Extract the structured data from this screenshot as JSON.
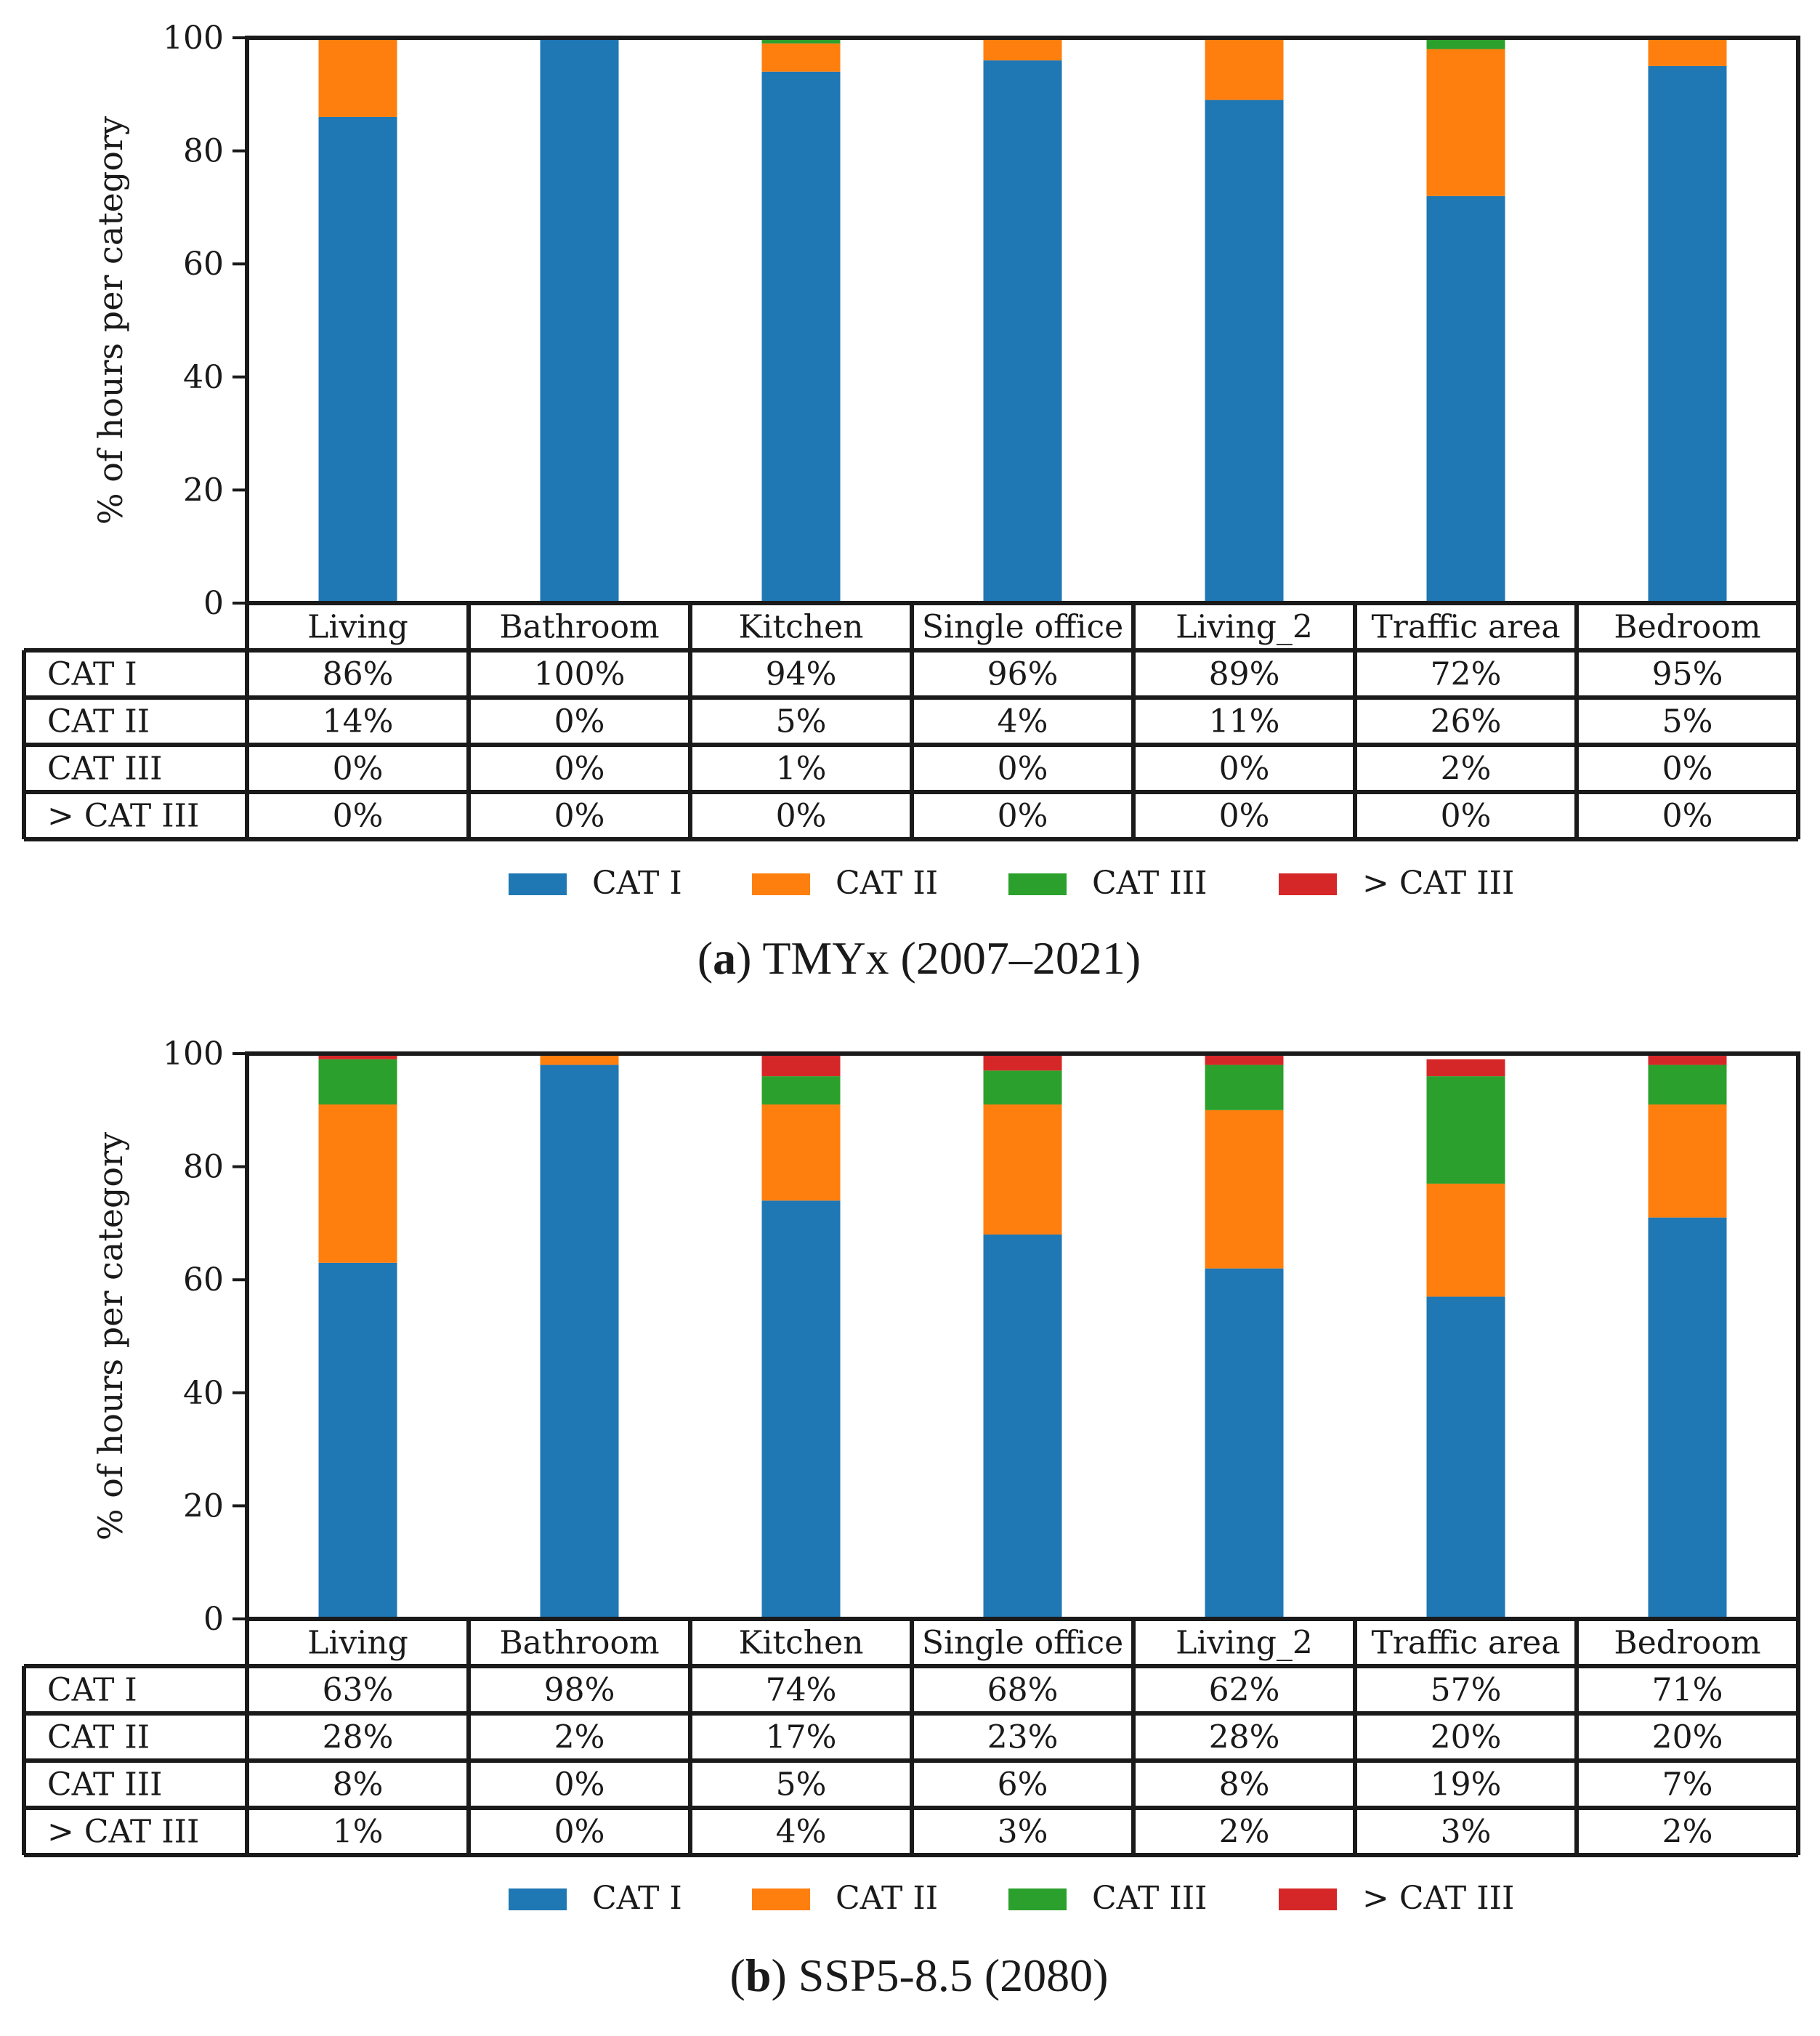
{
  "colors": {
    "cat1": "#1f77b4",
    "cat2": "#ff7f0e",
    "cat3": "#2ca02c",
    "cat4": "#d62728"
  },
  "legend": [
    "CAT I",
    "CAT II",
    "CAT III",
    "> CAT III"
  ],
  "chart_data": [
    {
      "type": "bar",
      "stacked": true,
      "caption_label": "a",
      "caption_text": "TMYx (2007–2021)",
      "ylabel": "% of hours per category",
      "ylim": [
        0,
        100
      ],
      "yticks": [
        "0",
        "20",
        "40",
        "60",
        "80",
        "100"
      ],
      "categories": [
        "Living",
        "Bathroom",
        "Kitchen",
        "Single office",
        "Living_2",
        "Traffic area",
        "Bedroom"
      ],
      "series": [
        {
          "name": "CAT I",
          "values": [
            86,
            100,
            94,
            96,
            89,
            72,
            95
          ],
          "labels": [
            "86%",
            "100%",
            "94%",
            "96%",
            "89%",
            "72%",
            "95%"
          ]
        },
        {
          "name": "CAT II",
          "values": [
            14,
            0,
            5,
            4,
            11,
            26,
            5
          ],
          "labels": [
            "14%",
            "0%",
            "5%",
            "4%",
            "11%",
            "26%",
            "5%"
          ]
        },
        {
          "name": "CAT III",
          "values": [
            0,
            0,
            1,
            0,
            0,
            2,
            0
          ],
          "labels": [
            "0%",
            "0%",
            "1%",
            "0%",
            "0%",
            "2%",
            "0%"
          ]
        },
        {
          "name": "> CAT III",
          "values": [
            0,
            0,
            0,
            0,
            0,
            0,
            0
          ],
          "labels": [
            "0%",
            "0%",
            "0%",
            "0%",
            "0%",
            "0%",
            "0%"
          ]
        }
      ]
    },
    {
      "type": "bar",
      "stacked": true,
      "caption_label": "b",
      "caption_text": "SSP5-8.5 (2080)",
      "ylabel": "% of hours per category",
      "ylim": [
        0,
        100
      ],
      "yticks": [
        "0",
        "20",
        "40",
        "60",
        "80",
        "100"
      ],
      "categories": [
        "Living",
        "Bathroom",
        "Kitchen",
        "Single office",
        "Living_2",
        "Traffic area",
        "Bedroom"
      ],
      "series": [
        {
          "name": "CAT I",
          "values": [
            63,
            98,
            74,
            68,
            62,
            57,
            71
          ],
          "labels": [
            "63%",
            "98%",
            "74%",
            "68%",
            "62%",
            "57%",
            "71%"
          ]
        },
        {
          "name": "CAT II",
          "values": [
            28,
            2,
            17,
            23,
            28,
            20,
            20
          ],
          "labels": [
            "28%",
            "2%",
            "17%",
            "23%",
            "28%",
            "20%",
            "20%"
          ]
        },
        {
          "name": "CAT III",
          "values": [
            8,
            0,
            5,
            6,
            8,
            19,
            7
          ],
          "labels": [
            "8%",
            "0%",
            "5%",
            "6%",
            "8%",
            "19%",
            "7%"
          ]
        },
        {
          "name": "> CAT III",
          "values": [
            1,
            0,
            4,
            3,
            2,
            3,
            2
          ],
          "labels": [
            "1%",
            "0%",
            "4%",
            "3%",
            "2%",
            "3%",
            "2%"
          ]
        }
      ]
    }
  ]
}
